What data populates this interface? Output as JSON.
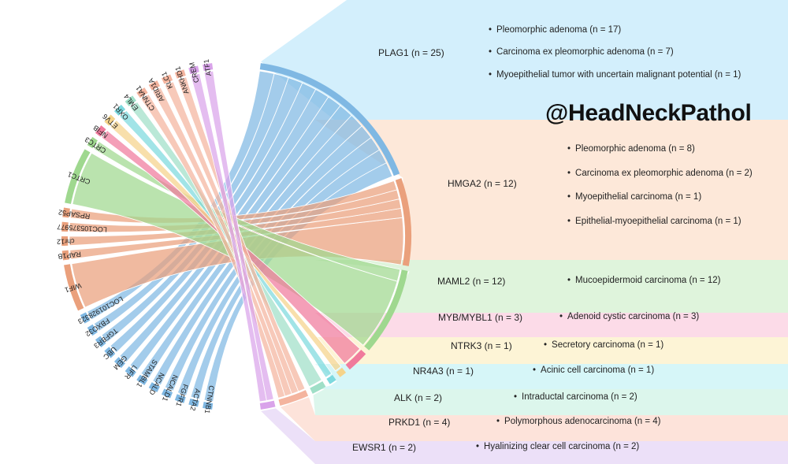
{
  "handle": "@HeadNeckPathol",
  "colors": {
    "PLAG1": "#7fb8e3",
    "HMGA2": "#eaa07c",
    "MAML2": "#9fd88f",
    "MYB": "#f07a9c",
    "NTRK3": "#f5d38a",
    "NR4A3": "#7dd9de",
    "ALK": "#9fdfc7",
    "PRKD1": "#f4b49e",
    "EWSR1": "#d9a3ea",
    "CRTC1": "#9fd88f"
  },
  "right_groups": [
    {
      "id": "PLAG1",
      "label": "PLAG1  (n = 25)",
      "n": 25,
      "panel_color": "#d3effc",
      "items": [
        "Pleomorphic adenoma  (n = 17)",
        "Carcinoma ex pleomorphic adenoma  (n = 7)",
        "Myoepithelial tumor with uncertain malignant potential  (n = 1)"
      ]
    },
    {
      "id": "HMGA2",
      "label": "HMGA2  (n = 12)",
      "n": 12,
      "panel_color": "#fde8d9",
      "items": [
        "Pleomorphic adenoma  (n = 8)",
        "Carcinoma ex pleomorphic adenoma  (n = 2)",
        "Myoepithelial carcinoma  (n = 1)",
        "Epithelial-myoepithelial carcinoma  (n = 1)"
      ]
    },
    {
      "id": "MAML2",
      "label": "MAML2  (n = 12)",
      "n": 12,
      "panel_color": "#dff4dc",
      "items": [
        "Mucoepidermoid carcinoma  (n = 12)"
      ]
    },
    {
      "id": "MYB",
      "label": "MYB/MYBL1  (n = 3)",
      "n": 3,
      "panel_color": "#fcdbe8",
      "items": [
        "Adenoid cystic carcinoma  (n = 3)"
      ]
    },
    {
      "id": "NTRK3",
      "label": "NTRK3  (n = 1)",
      "n": 1,
      "panel_color": "#fdf4d6",
      "items": [
        "Secretory carcinoma  (n = 1)"
      ]
    },
    {
      "id": "NR4A3",
      "label": "NR4A3  (n = 1)",
      "n": 1,
      "panel_color": "#d6f6f8",
      "items": [
        "Acinic cell carcinoma  (n = 1)"
      ]
    },
    {
      "id": "ALK",
      "label": "ALK  (n = 2)",
      "n": 2,
      "panel_color": "#dcf6ec",
      "items": [
        "Intraductal carcinoma  (n = 2)"
      ]
    },
    {
      "id": "PRKD1",
      "label": "PRKD1  (n = 4)",
      "n": 4,
      "panel_color": "#fde3da",
      "items": [
        "Polymorphous adenocarcinoma  (n = 4)"
      ]
    },
    {
      "id": "EWSR1",
      "label": "EWSR1  (n = 2)",
      "n": 2,
      "panel_color": "#ece0f8",
      "items": [
        "Hyalinizing clear cell carcinoma  (n = 2)"
      ]
    }
  ],
  "partner_genes": [
    {
      "name": "CTNNB1",
      "group": "PLAG1"
    },
    {
      "name": "ACTA2",
      "group": "PLAG1"
    },
    {
      "name": "FGFR1",
      "group": "PLAG1"
    },
    {
      "name": "NCALD1",
      "group": "PLAG1"
    },
    {
      "name": "NCALD",
      "group": "PLAG1"
    },
    {
      "name": "STAMBL1",
      "group": "PLAG1"
    },
    {
      "name": "LIFR",
      "group": "PLAG1"
    },
    {
      "name": "GEM",
      "group": "PLAG1"
    },
    {
      "name": "UBC",
      "group": "PLAG1"
    },
    {
      "name": "TGFBR3",
      "group": "PLAG1"
    },
    {
      "name": "FBXO32",
      "group": "PLAG1"
    },
    {
      "name": "LOC101928323",
      "group": "PLAG1"
    },
    {
      "name": "WIF1",
      "group": "HMGA2"
    },
    {
      "name": "RAP1B",
      "group": "HMGA2"
    },
    {
      "name": "chr12",
      "group": "HMGA2"
    },
    {
      "name": "LOC105375977",
      "group": "HMGA2"
    },
    {
      "name": "RPSAP52",
      "group": "HMGA2"
    },
    {
      "name": "CRTC1",
      "group": "MAML2"
    },
    {
      "name": "CRTC3",
      "group": "MAML2"
    },
    {
      "name": "NFIB",
      "group": "MYB"
    },
    {
      "name": "ETV6",
      "group": "NTRK3"
    },
    {
      "name": "OXR1",
      "group": "NR4A3"
    },
    {
      "name": "EML4",
      "group": "ALK"
    },
    {
      "name": "CTNNA1",
      "group": "PRKD1"
    },
    {
      "name": "ARID1A",
      "group": "PRKD1"
    },
    {
      "name": "KLC1",
      "group": "PRKD1"
    },
    {
      "name": "ANKHD1",
      "group": "PRKD1"
    },
    {
      "name": "CREM",
      "group": "EWSR1"
    },
    {
      "name": "ATF1",
      "group": "EWSR1"
    }
  ]
}
